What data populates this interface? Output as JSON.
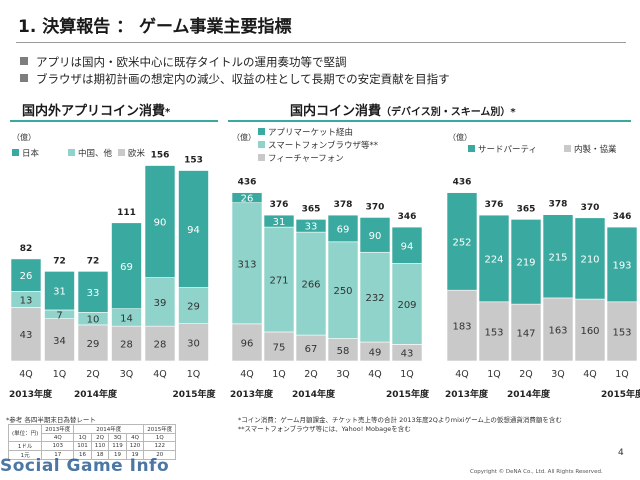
{
  "slide": {
    "title": "1. 決算報告 ： ゲーム事業主要指標",
    "bullets": [
      "アプリは国内・欧米中心に既存タイトルの運用奏功等で堅調",
      "ブラウザは期初計画の想定内の減少、収益の柱として長期での安定貢献を目指す"
    ],
    "page_number": "4",
    "copyright": "Copyright © DeNA Co., Ltd. All Rights Reserved.",
    "watermark": "Social Game Info"
  },
  "sections": {
    "left_title": "国内外アプリコイン消費",
    "left_mark": "*",
    "right_title": "国内コイン消費",
    "right_subtitle": "（デバイス別・スキーム別）",
    "right_mark": "*"
  },
  "footnotes": {
    "rate_note": "*参考 各四半期末日為替レート",
    "coin_note": "*コイン消費：ゲーム月額課金、チケット売上等の合計 2013年度2Qよりmixiゲーム上の仮想通貨消費額を含む",
    "browser_note": "**スマートフォンブラウザ等には、Yahoo! Mobageを含む"
  },
  "rate_table": {
    "unit": "(単位：円)",
    "year_headers": [
      "2013年度",
      "2014年度",
      "2015年度"
    ],
    "quarters": [
      "4Q",
      "1Q",
      "2Q",
      "3Q",
      "4Q",
      "1Q"
    ],
    "rows": [
      {
        "label": "1ドル",
        "values": [
          "103",
          "101",
          "110",
          "119",
          "120",
          "122"
        ]
      },
      {
        "label": "1元",
        "values": [
          "17",
          "16",
          "18",
          "19",
          "19",
          "20"
        ]
      }
    ]
  },
  "colors": {
    "accent": "#3aa9a0",
    "japan": "#3aa9a0",
    "china": "#8fd3ca",
    "western": "#c9c9c9",
    "app_market": "#3aa9a0",
    "smartphone_browser": "#8fd3ca",
    "feature_phone": "#c9c9c9",
    "third_party": "#3aa9a0",
    "in_house": "#c9c9c9",
    "axis_label": "#333333"
  },
  "chart_data": [
    {
      "type": "bar",
      "stacked": true,
      "unit_label": "（億）",
      "categories": [
        "4Q",
        "1Q",
        "2Q",
        "3Q",
        "4Q",
        "1Q"
      ],
      "fiscal_years": [
        "2013年度",
        "2014年度",
        "2015年度"
      ],
      "series": [
        {
          "name": "欧米",
          "values": [
            43,
            34,
            29,
            28,
            28,
            30
          ]
        },
        {
          "name": "中国、他",
          "values": [
            13,
            7,
            10,
            14,
            39,
            29
          ]
        },
        {
          "name": "日本",
          "values": [
            26,
            31,
            33,
            69,
            90,
            94
          ]
        }
      ],
      "totals": [
        82,
        72,
        72,
        111,
        156,
        153
      ],
      "legend": [
        "日本",
        "中国、他",
        "欧米"
      ]
    },
    {
      "type": "bar",
      "stacked": true,
      "unit_label": "（億）",
      "categories": [
        "4Q",
        "1Q",
        "2Q",
        "3Q",
        "4Q",
        "1Q"
      ],
      "fiscal_years": [
        "2013年度",
        "2014年度",
        "2015年度"
      ],
      "series": [
        {
          "name": "フィーチャーフォン",
          "values": [
            96,
            75,
            67,
            58,
            49,
            43
          ]
        },
        {
          "name": "スマートフォンブラウザ等**",
          "values": [
            313,
            271,
            266,
            250,
            232,
            209
          ]
        },
        {
          "name": "アプリマーケット経由",
          "values": [
            26,
            31,
            33,
            69,
            90,
            94
          ]
        }
      ],
      "totals": [
        436,
        376,
        365,
        378,
        370,
        346
      ],
      "legend": [
        "アプリマーケット経由",
        "スマートフォンブラウザ等**",
        "フィーチャーフォン"
      ]
    },
    {
      "type": "bar",
      "stacked": true,
      "unit_label": "（億）",
      "categories": [
        "4Q",
        "1Q",
        "2Q",
        "3Q",
        "4Q",
        "1Q"
      ],
      "fiscal_years": [
        "2013年度",
        "2014年度",
        "2015年度"
      ],
      "series": [
        {
          "name": "内製・協業",
          "values": [
            183,
            153,
            147,
            163,
            160,
            153
          ]
        },
        {
          "name": "サードパーティ",
          "values": [
            252,
            224,
            219,
            215,
            210,
            193
          ]
        }
      ],
      "totals": [
        436,
        376,
        365,
        378,
        370,
        346
      ],
      "legend": [
        "サードパーティ",
        "内製・協業"
      ]
    }
  ]
}
